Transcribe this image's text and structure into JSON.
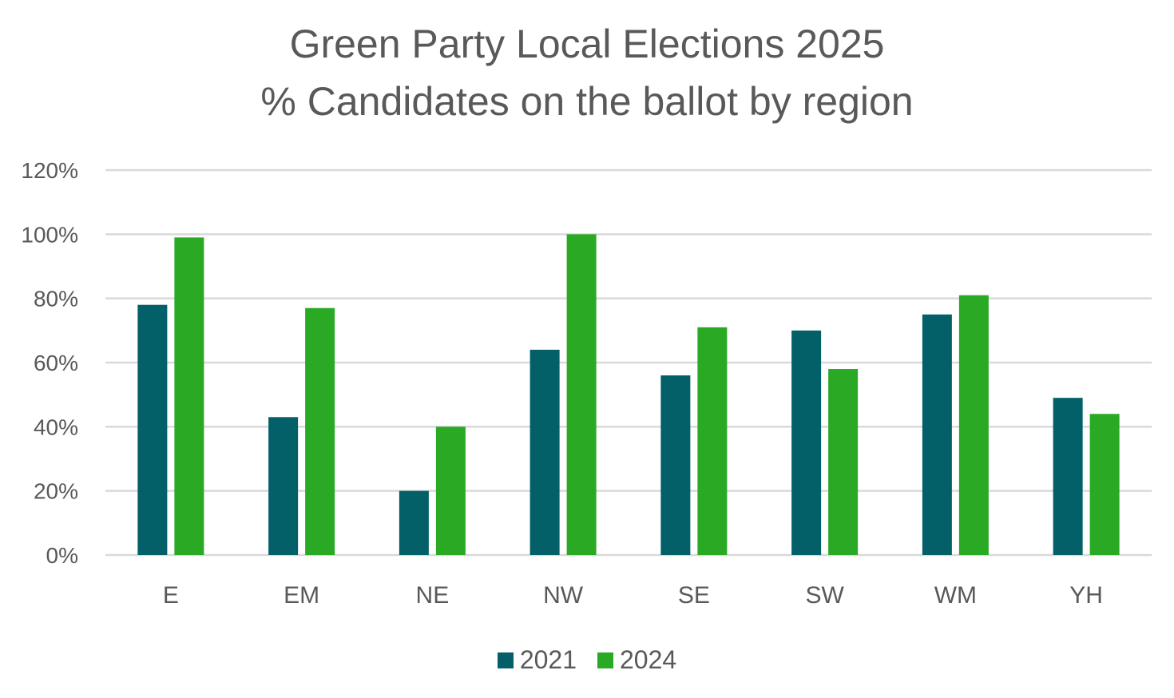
{
  "chart_data": {
    "type": "bar",
    "title": "Green Party Local Elections 2025",
    "subtitle": "% Candidates on the ballot by region",
    "categories": [
      "E",
      "EM",
      "NE",
      "NW",
      "SE",
      "SW",
      "WM",
      "YH"
    ],
    "series": [
      {
        "name": "2021",
        "color": "#035f68",
        "values": [
          78,
          43,
          20,
          64,
          56,
          70,
          75,
          49
        ]
      },
      {
        "name": "2024",
        "color": "#2aa924",
        "values": [
          99,
          77,
          40,
          100,
          71,
          58,
          81,
          44
        ]
      }
    ],
    "ylim": [
      0,
      120
    ],
    "yticks": [
      "0%",
      "20%",
      "40%",
      "60%",
      "80%",
      "100%",
      "120%"
    ],
    "ytick_step": 20,
    "xlabel": "",
    "ylabel": "",
    "grid": true,
    "legend_position": "bottom"
  }
}
